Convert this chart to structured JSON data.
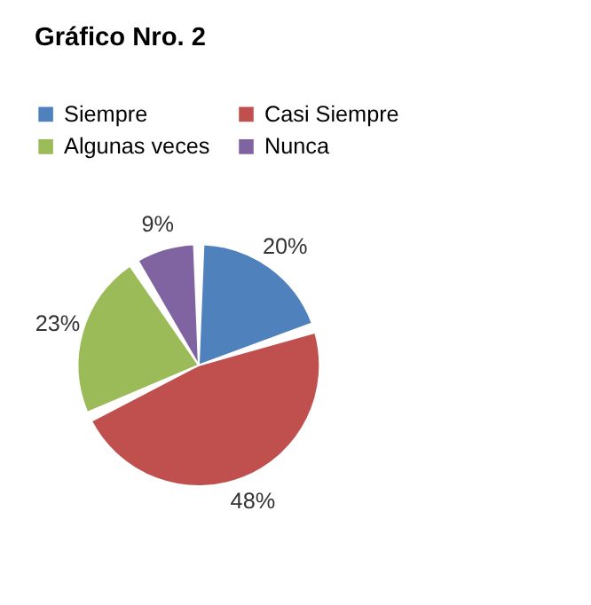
{
  "chart_data": {
    "type": "pie",
    "title": "Gráfico Nro. 2",
    "categories": [
      "Siempre",
      "Casi Siempre",
      "Algunas veces",
      "Nunca"
    ],
    "values": [
      20,
      48,
      23,
      9
    ],
    "colors": [
      "#4f81bd",
      "#c0504d",
      "#9bbb59",
      "#8064a2"
    ],
    "value_labels": [
      "20%",
      "48%",
      "23%",
      "9%"
    ],
    "legend": "top"
  }
}
